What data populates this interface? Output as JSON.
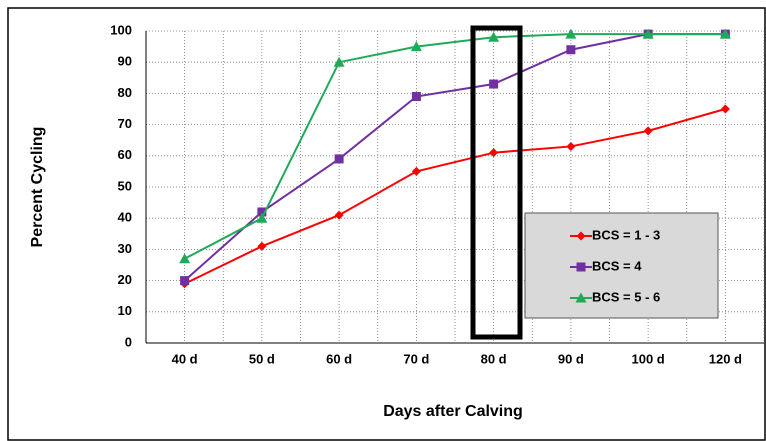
{
  "chart_data": {
    "type": "line",
    "x_label": "Days after Calving",
    "y_label": "Percent Cycling",
    "categories": [
      "40 d",
      "50 d",
      "60 d",
      "70 d",
      "80 d",
      "90 d",
      "100 d",
      "120 d"
    ],
    "series": [
      {
        "name": "BCS = 1 - 3",
        "color": "#ff0000",
        "marker": "diamond",
        "values": [
          19,
          31,
          41,
          55,
          61,
          63,
          68,
          75
        ]
      },
      {
        "name": "BCS = 4",
        "color": "#7030a0",
        "marker": "square",
        "values": [
          20,
          42,
          59,
          79,
          83,
          94,
          99,
          99
        ]
      },
      {
        "name": "BCS = 5 - 6",
        "color": "#1faa59",
        "marker": "triangle",
        "values": [
          27,
          40,
          90,
          95,
          98,
          99,
          99,
          99
        ]
      }
    ],
    "ylim": [
      0,
      100
    ],
    "yticks": [
      0,
      10,
      20,
      30,
      40,
      50,
      60,
      70,
      80,
      90,
      100
    ],
    "grid": true
  }
}
